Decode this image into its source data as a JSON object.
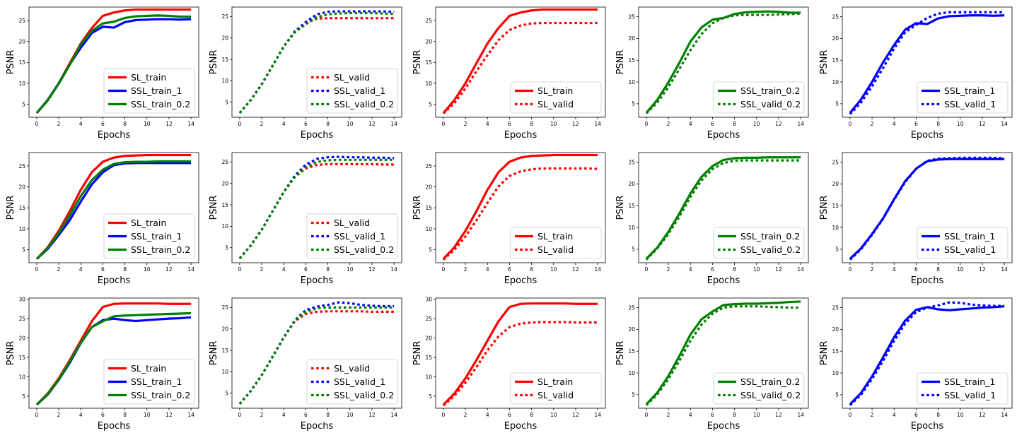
{
  "colors": {
    "red": "#ff0000",
    "blue": "#0000ff",
    "green": "#008000"
  },
  "chart_data": [
    {
      "type": "line",
      "xlabel": "Epochs",
      "ylabel": "PSNR",
      "xlim": [
        -0.7,
        14.7
      ],
      "ylim": [
        1.9,
        28.2
      ],
      "yticks": [
        5,
        10,
        15,
        20,
        25
      ],
      "legend_loc": "lower-right",
      "series": [
        {
          "name": "SL_train",
          "color": "red",
          "style": "solid",
          "values": [
            2.9,
            6,
            10,
            14.8,
            19.5,
            23.2,
            26.1,
            26.9,
            27.4,
            27.6,
            27.6,
            27.6,
            27.6,
            27.6,
            27.6
          ]
        },
        {
          "name": "SSL_train_1",
          "color": "blue",
          "style": "solid",
          "values": [
            2.9,
            6,
            10,
            14.5,
            18.5,
            22,
            23.5,
            23.3,
            24.6,
            25.1,
            25.2,
            25.3,
            25.3,
            25.2,
            25.3
          ]
        },
        {
          "name": "SSL_train_0.2",
          "color": "green",
          "style": "solid",
          "values": [
            2.9,
            5.9,
            9.9,
            14.4,
            19.3,
            22.5,
            24.3,
            24.7,
            25.6,
            26,
            26.1,
            26.2,
            26.1,
            25.9,
            25.9
          ]
        }
      ]
    },
    {
      "type": "line",
      "xlabel": "Epochs",
      "ylabel": "PSNR",
      "xlim": [
        -0.7,
        14.7
      ],
      "ylim": [
        1.5,
        27.2
      ],
      "yticks": [
        5,
        10,
        15,
        20,
        25
      ],
      "legend_loc": "lower-right",
      "series": [
        {
          "name": "SL_valid",
          "color": "red",
          "style": "dotted",
          "values": [
            2.5,
            5.5,
            9.2,
            13.6,
            18,
            21.5,
            23.5,
            24.5,
            24.6,
            24.6,
            24.6,
            24.6,
            24.6,
            24.6,
            24.6
          ]
        },
        {
          "name": "SSL_valid_1",
          "color": "blue",
          "style": "dotted",
          "values": [
            2.5,
            5.5,
            9.2,
            13.6,
            18,
            21.5,
            23.7,
            25.5,
            26.1,
            26.2,
            26.2,
            26.2,
            26.2,
            26.2,
            26.1
          ]
        },
        {
          "name": "SSL_valid_0.2",
          "color": "green",
          "style": "dotted",
          "values": [
            2.5,
            5.5,
            9.2,
            13.6,
            18,
            21.3,
            23.2,
            24.8,
            25.5,
            25.7,
            25.8,
            25.8,
            25.8,
            25.7,
            25.6
          ]
        }
      ]
    },
    {
      "type": "line",
      "xlabel": "Epochs",
      "ylabel": "PSNR",
      "xlim": [
        -0.7,
        14.7
      ],
      "ylim": [
        1.9,
        28.2
      ],
      "yticks": [
        5,
        10,
        15,
        20,
        25
      ],
      "legend_loc": "lower-right",
      "series": [
        {
          "name": "SL_train",
          "color": "red",
          "style": "solid",
          "values": [
            2.9,
            6,
            10,
            14.8,
            19.5,
            23.2,
            26.1,
            26.9,
            27.4,
            27.6,
            27.6,
            27.6,
            27.6,
            27.6,
            27.6
          ]
        },
        {
          "name": "SL_valid",
          "color": "red",
          "style": "dotted",
          "values": [
            2.8,
            5.3,
            8.8,
            12.9,
            16.7,
            20.3,
            22.7,
            23.8,
            24.3,
            24.4,
            24.4,
            24.4,
            24.4,
            24.4,
            24.4
          ]
        }
      ]
    },
    {
      "type": "line",
      "xlabel": "Epochs",
      "ylabel": "PSNR",
      "xlim": [
        -0.7,
        14.7
      ],
      "ylim": [
        1.9,
        27.2
      ],
      "yticks": [
        5,
        10,
        15,
        20,
        25
      ],
      "legend_loc": "lower-right",
      "series": [
        {
          "name": "SSL_train_0.2",
          "color": "green",
          "style": "solid",
          "values": [
            2.9,
            5.9,
            9.9,
            14.4,
            19.3,
            22.5,
            24.3,
            24.7,
            25.6,
            26,
            26.1,
            26.2,
            26.1,
            25.9,
            25.9
          ]
        },
        {
          "name": "SSL_valid_0.2",
          "color": "green",
          "style": "dotted",
          "values": [
            2.8,
            5.3,
            8.8,
            13,
            17.3,
            21,
            23.5,
            24.7,
            25.3,
            25.4,
            25.4,
            25.4,
            25.5,
            25.6,
            25.7
          ]
        }
      ]
    },
    {
      "type": "line",
      "xlabel": "Epochs",
      "ylabel": "PSNR",
      "xlim": [
        -0.7,
        14.7
      ],
      "ylim": [
        1.9,
        27.2
      ],
      "yticks": [
        5,
        10,
        15,
        20,
        25
      ],
      "legend_loc": "lower-right",
      "series": [
        {
          "name": "SSL_train_1",
          "color": "blue",
          "style": "solid",
          "values": [
            2.9,
            6,
            10,
            14.5,
            18.5,
            22,
            23.5,
            23.3,
            24.6,
            25.1,
            25.2,
            25.3,
            25.3,
            25.2,
            25.3
          ]
        },
        {
          "name": "SSL_valid_1",
          "color": "blue",
          "style": "dotted",
          "values": [
            2.6,
            5.3,
            9,
            13.2,
            17.7,
            21.4,
            23.1,
            24.7,
            25.7,
            26,
            26,
            26,
            26,
            26,
            26
          ]
        }
      ]
    },
    {
      "type": "line",
      "xlabel": "Epochs",
      "ylabel": "PSNR",
      "xlim": [
        -0.7,
        14.7
      ],
      "ylim": [
        1.9,
        28.2
      ],
      "yticks": [
        5,
        10,
        15,
        20,
        25
      ],
      "legend_loc": "lower-right",
      "series": [
        {
          "name": "SL_train",
          "color": "red",
          "style": "solid",
          "values": [
            2.8,
            5.6,
            9.5,
            14.2,
            19.3,
            23.5,
            26,
            27,
            27.4,
            27.5,
            27.6,
            27.6,
            27.6,
            27.6,
            27.6
          ]
        },
        {
          "name": "SSL_train_1",
          "color": "blue",
          "style": "solid",
          "values": [
            2.8,
            5.2,
            8.5,
            12.1,
            16.5,
            20.6,
            23.5,
            25.2,
            25.6,
            25.7,
            25.7,
            25.7,
            25.7,
            25.7,
            25.7
          ]
        },
        {
          "name": "SSL_train_0.2",
          "color": "green",
          "style": "solid",
          "values": [
            2.8,
            5.4,
            9,
            13.2,
            17.8,
            21.6,
            24.1,
            25.5,
            25.9,
            26,
            26,
            26.1,
            26.1,
            26.1,
            26.1
          ]
        }
      ]
    },
    {
      "type": "line",
      "xlabel": "Epochs",
      "ylabel": "PSNR",
      "xlim": [
        -0.7,
        14.7
      ],
      "ylim": [
        1.5,
        27.2
      ],
      "yticks": [
        5,
        10,
        15,
        20,
        25
      ],
      "legend_loc": "lower-right",
      "series": [
        {
          "name": "SL_valid",
          "color": "red",
          "style": "dotted",
          "values": [
            2.5,
            5.5,
            9.2,
            13.6,
            18,
            21.5,
            23.5,
            24.3,
            24.5,
            24.5,
            24.5,
            24.5,
            24.5,
            24.4,
            24.4
          ]
        },
        {
          "name": "SSL_valid_1",
          "color": "blue",
          "style": "dotted",
          "values": [
            2.5,
            5.5,
            9.2,
            13.6,
            18,
            21.8,
            24.4,
            25.7,
            26.1,
            26.2,
            26.1,
            26.1,
            26,
            26,
            25.9
          ]
        },
        {
          "name": "SSL_valid_0.2",
          "color": "green",
          "style": "dotted",
          "values": [
            2.5,
            5.5,
            9.2,
            13.6,
            18,
            21.5,
            23.8,
            25,
            25.4,
            25.5,
            25.5,
            25.5,
            25.5,
            25.5,
            25.5
          ]
        }
      ]
    },
    {
      "type": "line",
      "xlabel": "Epochs",
      "ylabel": "PSNR",
      "xlim": [
        -0.7,
        14.7
      ],
      "ylim": [
        1.9,
        28.2
      ],
      "yticks": [
        5,
        10,
        15,
        20,
        25
      ],
      "legend_loc": "lower-right",
      "series": [
        {
          "name": "SL_train",
          "color": "red",
          "style": "solid",
          "values": [
            2.8,
            5.6,
            9.5,
            14.2,
            19.3,
            23.5,
            26,
            27,
            27.4,
            27.5,
            27.6,
            27.6,
            27.6,
            27.6,
            27.6
          ]
        },
        {
          "name": "SL_valid",
          "color": "red",
          "style": "dotted",
          "values": [
            2.6,
            5,
            8.2,
            12,
            16.2,
            20.1,
            22.6,
            23.7,
            24.2,
            24.4,
            24.4,
            24.4,
            24.4,
            24.4,
            24.3
          ]
        }
      ]
    },
    {
      "type": "line",
      "xlabel": "Epochs",
      "ylabel": "PSNR",
      "xlim": [
        -0.7,
        14.7
      ],
      "ylim": [
        1.9,
        27.2
      ],
      "yticks": [
        5,
        10,
        15,
        20,
        25
      ],
      "legend_loc": "lower-right",
      "series": [
        {
          "name": "SSL_train_0.2",
          "color": "green",
          "style": "solid",
          "values": [
            2.8,
            5.4,
            9,
            13.2,
            17.8,
            21.6,
            24.1,
            25.5,
            25.9,
            26,
            26,
            26.1,
            26.1,
            26.1,
            26.1
          ]
        },
        {
          "name": "SSL_valid_0.2",
          "color": "green",
          "style": "dotted",
          "values": [
            2.6,
            5.2,
            8.5,
            12.5,
            17,
            20.8,
            23.4,
            24.8,
            25.3,
            25.4,
            25.4,
            25.4,
            25.4,
            25.4,
            25.4
          ]
        }
      ]
    },
    {
      "type": "line",
      "xlabel": "Epochs",
      "ylabel": "PSNR",
      "xlim": [
        -0.7,
        14.7
      ],
      "ylim": [
        1.9,
        27.2
      ],
      "yticks": [
        5,
        10,
        15,
        20,
        25
      ],
      "legend_loc": "lower-right",
      "series": [
        {
          "name": "SSL_train_1",
          "color": "blue",
          "style": "solid",
          "values": [
            2.8,
            5.2,
            8.5,
            12.1,
            16.5,
            20.6,
            23.5,
            25.2,
            25.6,
            25.7,
            25.7,
            25.7,
            25.7,
            25.7,
            25.7
          ]
        },
        {
          "name": "SSL_valid_1",
          "color": "blue",
          "style": "dotted",
          "values": [
            2.6,
            5,
            8.3,
            12,
            16.4,
            20.4,
            23.5,
            25.3,
            25.8,
            25.9,
            26,
            26,
            26,
            26,
            25.9
          ]
        }
      ]
    },
    {
      "type": "line",
      "xlabel": "Epochs",
      "ylabel": "PSNR",
      "xlim": [
        -0.7,
        14.7
      ],
      "ylim": [
        1.9,
        30.3
      ],
      "yticks": [
        5,
        10,
        15,
        20,
        25,
        30
      ],
      "legend_loc": "lower-right",
      "series": [
        {
          "name": "SL_train",
          "color": "red",
          "style": "solid",
          "values": [
            2.8,
            5.7,
            9.6,
            14.3,
            19.3,
            24.3,
            28,
            28.8,
            28.9,
            28.9,
            28.9,
            28.9,
            28.8,
            28.8,
            28.8
          ]
        },
        {
          "name": "SSL_train_1",
          "color": "blue",
          "style": "solid",
          "values": [
            2.8,
            5.4,
            9.2,
            13.6,
            18.7,
            22.8,
            24.6,
            25,
            24.6,
            24.4,
            24.6,
            24.8,
            25,
            25.1,
            25.3
          ]
        },
        {
          "name": "SSL_train_0.2",
          "color": "green",
          "style": "solid",
          "values": [
            2.8,
            5.5,
            9.3,
            13.9,
            18.8,
            22.8,
            24.3,
            25.6,
            25.8,
            25.9,
            26,
            26.1,
            26.2,
            26.3,
            26.4
          ]
        }
      ]
    },
    {
      "type": "line",
      "xlabel": "Epochs",
      "ylabel": "PSNR",
      "xlim": [
        -0.7,
        14.7
      ],
      "ylim": [
        1.5,
        27.2
      ],
      "yticks": [
        5,
        10,
        15,
        20,
        25
      ],
      "legend_loc": "lower-right",
      "series": [
        {
          "name": "SL_valid",
          "color": "red",
          "style": "dotted",
          "values": [
            2.5,
            5.5,
            9.2,
            13.6,
            18,
            21.8,
            23.5,
            24,
            24.1,
            24.1,
            24.1,
            24.1,
            24,
            24,
            24
          ]
        },
        {
          "name": "SSL_valid_1",
          "color": "blue",
          "style": "dotted",
          "values": [
            2.5,
            5.5,
            9.2,
            13.6,
            18,
            22,
            24.4,
            25.2,
            25.6,
            26.2,
            26,
            25.6,
            25.4,
            25.3,
            25.3
          ]
        },
        {
          "name": "SSL_valid_0.2",
          "color": "green",
          "style": "dotted",
          "values": [
            2.5,
            5.5,
            9.2,
            13.6,
            18,
            21.9,
            24,
            24.8,
            25,
            25,
            25,
            25,
            25,
            25,
            25
          ]
        }
      ]
    },
    {
      "type": "line",
      "xlabel": "Epochs",
      "ylabel": "PSNR",
      "xlim": [
        -0.7,
        14.7
      ],
      "ylim": [
        1.9,
        30.3
      ],
      "yticks": [
        5,
        10,
        15,
        20,
        25,
        30
      ],
      "legend_loc": "lower-right",
      "series": [
        {
          "name": "SL_train",
          "color": "red",
          "style": "solid",
          "values": [
            2.8,
            5.7,
            9.6,
            14.3,
            19.3,
            24.3,
            28,
            28.8,
            28.9,
            28.9,
            28.9,
            28.9,
            28.8,
            28.8,
            28.8
          ]
        },
        {
          "name": "SL_valid",
          "color": "red",
          "style": "dotted",
          "values": [
            2.6,
            5.1,
            8.5,
            12.5,
            16.8,
            20.4,
            22.8,
            23.7,
            24,
            24.1,
            24.1,
            24.1,
            24,
            24,
            24
          ]
        }
      ]
    },
    {
      "type": "line",
      "xlabel": "Epochs",
      "ylabel": "PSNR",
      "xlim": [
        -0.7,
        14.7
      ],
      "ylim": [
        1.9,
        27.2
      ],
      "yticks": [
        5,
        10,
        15,
        20,
        25
      ],
      "legend_loc": "lower-right",
      "series": [
        {
          "name": "SSL_train_0.2",
          "color": "green",
          "style": "solid",
          "values": [
            2.8,
            5.5,
            9.3,
            13.9,
            18.8,
            22.3,
            24.1,
            25.6,
            25.8,
            25.9,
            25.9,
            26,
            26.1,
            26.3,
            26.4
          ]
        },
        {
          "name": "SSL_valid_0.2",
          "color": "green",
          "style": "dotted",
          "values": [
            2.6,
            5.1,
            8.6,
            12.8,
            17.4,
            21.1,
            23.6,
            25,
            25.3,
            25.3,
            25.3,
            25.2,
            25.1,
            25,
            25
          ]
        }
      ]
    },
    {
      "type": "line",
      "xlabel": "Epochs",
      "ylabel": "PSNR",
      "xlim": [
        -0.7,
        14.7
      ],
      "ylim": [
        1.9,
        27.2
      ],
      "yticks": [
        5,
        10,
        15,
        20,
        25
      ],
      "legend_loc": "lower-right",
      "series": [
        {
          "name": "SSL_train_1",
          "color": "blue",
          "style": "solid",
          "values": [
            2.8,
            5.4,
            9.2,
            13.6,
            18.2,
            22,
            24.5,
            25.1,
            24.6,
            24.4,
            24.6,
            24.8,
            25,
            25.1,
            25.3
          ]
        },
        {
          "name": "SSL_valid_1",
          "color": "blue",
          "style": "dotted",
          "values": [
            2.6,
            5,
            8.6,
            12.8,
            17.4,
            21.3,
            24,
            25,
            25.5,
            26.2,
            26.1,
            25.7,
            25.5,
            25.4,
            25.4
          ]
        }
      ]
    }
  ]
}
